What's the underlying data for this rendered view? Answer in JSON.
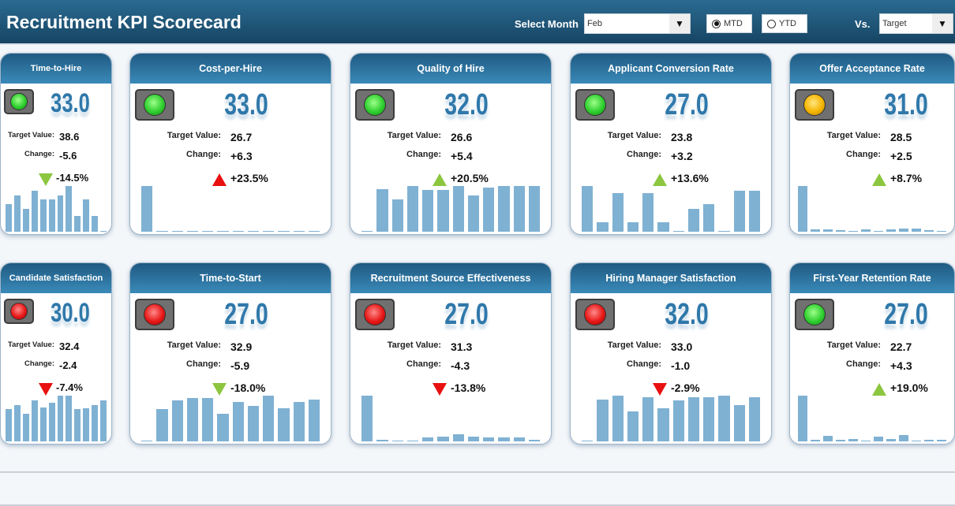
{
  "header": {
    "title": "Recruitment KPI Scorecard",
    "select_month_label": "Select Month",
    "month_value": "Feb",
    "mtd_label": "MTD",
    "ytd_label": "YTD",
    "period_selected": "MTD",
    "vs_label": "Vs.",
    "vs_value": "Target"
  },
  "labels": {
    "target": "Target Value:",
    "change": "Change:"
  },
  "colors": {
    "green": "#3fd13f",
    "yellow": "#f4b400",
    "red": "#e81818",
    "arrow_green": "#8cc63f",
    "arrow_red": "#e81010"
  },
  "cards": [
    {
      "title": "Time-to-Hire",
      "value": "33.0",
      "target": "38.6",
      "change": "-5.6",
      "pct": "-14.5%",
      "light": "green",
      "arrow": "down",
      "arrow_color": "arrow_green",
      "bars": [
        60,
        80,
        50,
        90,
        70,
        70,
        80,
        100,
        35,
        70,
        35,
        2
      ]
    },
    {
      "title": "Cost-per-Hire",
      "value": "33.0",
      "target": "26.7",
      "change": "+6.3",
      "pct": "+23.5%",
      "light": "green",
      "arrow": "up",
      "arrow_color": "arrow_red",
      "bars": [
        100,
        2,
        2,
        2,
        2,
        2,
        2,
        2,
        2,
        2,
        2,
        2
      ]
    },
    {
      "title": "Quality of Hire",
      "value": "32.0",
      "target": "26.6",
      "change": "+5.4",
      "pct": "+20.5%",
      "light": "green",
      "arrow": "up",
      "arrow_color": "arrow_green",
      "bars": [
        2,
        93,
        70,
        100,
        92,
        92,
        100,
        80,
        96,
        100,
        100,
        100
      ]
    },
    {
      "title": "Applicant Conversion Rate",
      "value": "27.0",
      "target": "23.8",
      "change": "+3.2",
      "pct": "+13.6%",
      "light": "green",
      "arrow": "up",
      "arrow_color": "arrow_green",
      "bars": [
        100,
        20,
        85,
        20,
        85,
        20,
        1,
        50,
        60,
        1,
        90,
        90
      ]
    },
    {
      "title": "Offer Acceptance Rate",
      "value": "31.0",
      "target": "28.5",
      "change": "+2.5",
      "pct": "+8.7%",
      "light": "yellow",
      "arrow": "up",
      "arrow_color": "arrow_green",
      "bars": [
        100,
        5,
        5,
        4,
        1,
        5,
        1,
        5,
        7,
        7,
        3,
        2
      ]
    },
    {
      "title": "Candidate Satisfaction",
      "value": "30.0",
      "target": "32.4",
      "change": "-2.4",
      "pct": "-7.4%",
      "light": "red",
      "arrow": "down",
      "arrow_color": "arrow_red",
      "bars": [
        70,
        80,
        60,
        90,
        75,
        85,
        100,
        100,
        70,
        72,
        80,
        90
      ]
    },
    {
      "title": "Time-to-Start",
      "value": "27.0",
      "target": "32.9",
      "change": "-5.9",
      "pct": "-18.0%",
      "light": "red",
      "arrow": "down",
      "arrow_color": "arrow_green",
      "bars": [
        2,
        70,
        90,
        95,
        95,
        60,
        87,
        78,
        100,
        73,
        87,
        92
      ]
    },
    {
      "title": "Recruitment Source Effectiveness",
      "value": "27.0",
      "target": "31.3",
      "change": "-4.3",
      "pct": "-13.8%",
      "light": "red",
      "arrow": "down",
      "arrow_color": "arrow_red",
      "bars": [
        100,
        3,
        1,
        1,
        8,
        10,
        16,
        10,
        8,
        8,
        8,
        3
      ]
    },
    {
      "title": "Hiring Manager Satisfaction",
      "value": "32.0",
      "target": "33.0",
      "change": "-1.0",
      "pct": "-2.9%",
      "light": "red",
      "arrow": "down",
      "arrow_color": "arrow_red",
      "bars": [
        1,
        92,
        100,
        65,
        97,
        72,
        90,
        97,
        97,
        100,
        80,
        97
      ]
    },
    {
      "title": "First-Year Retention Rate",
      "value": "27.0",
      "target": "22.7",
      "change": "+4.3",
      "pct": "+19.0%",
      "light": "green",
      "arrow": "up",
      "arrow_color": "arrow_green",
      "bars": [
        100,
        3,
        12,
        4,
        5,
        1,
        11,
        6,
        14,
        1,
        4,
        3
      ]
    }
  ]
}
